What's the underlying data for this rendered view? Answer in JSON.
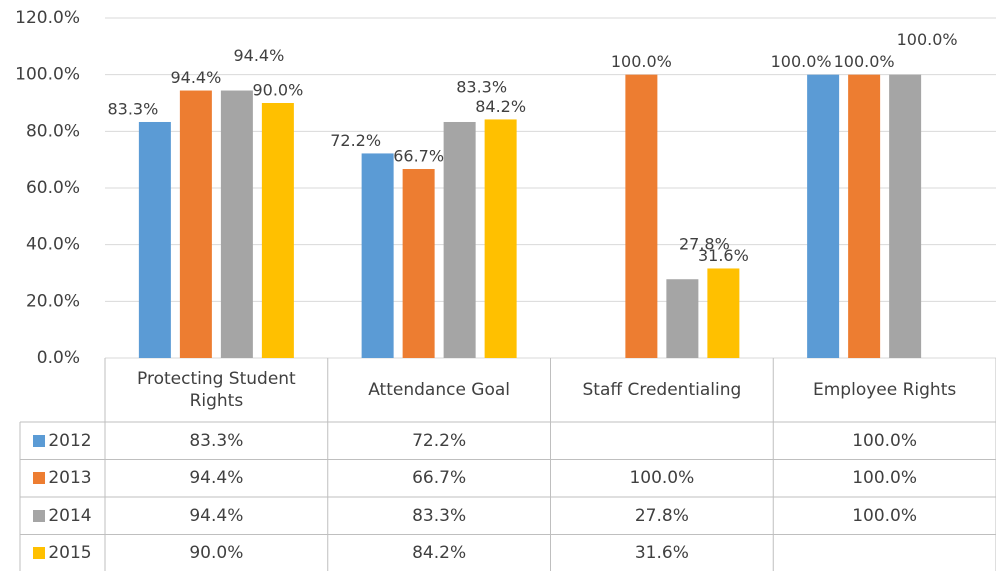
{
  "chart_data": {
    "type": "bar",
    "categories": [
      "Protecting Student Rights",
      "Attendance Goal",
      "Staff Credentialing",
      "Employee Rights"
    ],
    "series": [
      {
        "name": "2012",
        "color": "#5b9bd5",
        "values": [
          83.3,
          72.2,
          null,
          100.0
        ],
        "value_labels": [
          "83.3%",
          "72.2%",
          null,
          "100.0%"
        ]
      },
      {
        "name": "2013",
        "color": "#ed7d31",
        "values": [
          94.4,
          66.7,
          100.0,
          100.0
        ],
        "value_labels": [
          "94.4%",
          "66.7%",
          "100.0%",
          "100.0%"
        ]
      },
      {
        "name": "2014",
        "color": "#a5a5a5",
        "values": [
          94.4,
          83.3,
          27.8,
          100.0
        ],
        "value_labels": [
          "94.4%",
          "83.3%",
          "27.8%",
          "100.0%"
        ]
      },
      {
        "name": "2015",
        "color": "#ffc000",
        "values": [
          90.0,
          84.2,
          31.6,
          null
        ],
        "value_labels": [
          "90.0%",
          "84.2%",
          "31.6%",
          null
        ]
      }
    ],
    "ylim": [
      0,
      120
    ],
    "yticks": [
      {
        "value": 0,
        "label": "0.0%"
      },
      {
        "value": 20,
        "label": "20.0%"
      },
      {
        "value": 40,
        "label": "40.0%"
      },
      {
        "value": 60,
        "label": "60.0%"
      },
      {
        "value": 80,
        "label": "80.0%"
      },
      {
        "value": 100,
        "label": "100.0%"
      },
      {
        "value": 120,
        "label": "120.0%"
      }
    ],
    "grid": true
  }
}
